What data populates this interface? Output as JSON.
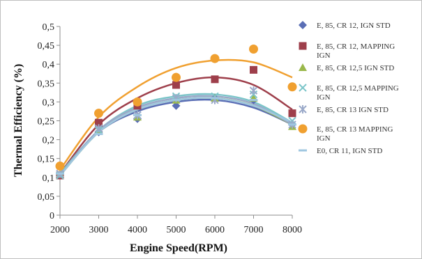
{
  "chart_data": {
    "type": "scatter",
    "xlabel": "Engine Speed(RPM)",
    "ylabel": "Thermal Efficiency (%)",
    "xlim": [
      2000,
      8000
    ],
    "ylim": [
      0,
      0.5
    ],
    "x_ticks": [
      "2000",
      "3000",
      "4000",
      "5000",
      "6000",
      "7000",
      "8000"
    ],
    "y_ticks": [
      "0",
      "0,05",
      "0,1",
      "0,15",
      "0,2",
      "0,25",
      "0,3",
      "0,35",
      "0,4",
      "0,45",
      "0,5"
    ],
    "x": [
      2000,
      3000,
      4000,
      5000,
      6000,
      7000,
      8000
    ],
    "grid": false,
    "legend_position": "right",
    "series": [
      {
        "name": "E, 85,  CR 12, IGN STD",
        "name_lines": [
          "E, 85,  CR 12, IGN STD"
        ],
        "values": [
          0.105,
          0.22,
          0.255,
          0.29,
          0.31,
          0.305,
          0.24
        ],
        "fit": [
          0.105,
          0.22,
          0.275,
          0.3,
          0.305,
          0.285,
          0.24
        ],
        "color": "#5a6eb5",
        "marker": "diamond"
      },
      {
        "name": "E, 85,  CR 12, MAPPING IGN",
        "name_lines": [
          "E, 85,  CR 12, MAPPING",
          "IGN"
        ],
        "values": [
          0.105,
          0.245,
          0.29,
          0.345,
          0.36,
          0.385,
          0.27
        ],
        "fit": [
          0.11,
          0.24,
          0.31,
          0.35,
          0.365,
          0.345,
          0.28
        ],
        "color": "#9e3f4b",
        "marker": "square"
      },
      {
        "name": "E, 85,  CR 12,5 IGN STD",
        "name_lines": [
          "E, 85,  CR 12,5 IGN STD"
        ],
        "values": [
          0.11,
          0.225,
          0.26,
          0.305,
          0.31,
          0.31,
          0.235
        ],
        "fit": [
          0.105,
          0.22,
          0.28,
          0.305,
          0.31,
          0.29,
          0.24
        ],
        "color": "#9ab84b",
        "marker": "triangle"
      },
      {
        "name": "E, 85,  CR 12,5 MAPPING IGN",
        "name_lines": [
          "E, 85,  CR 12,5 MAPPING",
          "IGN"
        ],
        "values": [
          0.105,
          0.225,
          0.265,
          0.315,
          0.315,
          0.32,
          0.25
        ],
        "fit": [
          0.11,
          0.225,
          0.29,
          0.315,
          0.32,
          0.3,
          0.245
        ],
        "color": "#7cc5c9",
        "marker": "cross"
      },
      {
        "name": "E, 85,  CR 13 IGN STD",
        "name_lines": [
          "E, 85,  CR 13 IGN STD"
        ],
        "values": [
          0.11,
          0.23,
          0.265,
          0.31,
          0.305,
          0.33,
          0.24
        ],
        "fit": [
          0.105,
          0.225,
          0.285,
          0.31,
          0.315,
          0.295,
          0.24
        ],
        "color": "#9aa9c9",
        "marker": "x"
      },
      {
        "name": "E, 85,  CR 13 MAPPING IGN",
        "name_lines": [
          "E, 85,  CR 13 MAPPING",
          "IGN"
        ],
        "values": [
          0.13,
          0.27,
          0.3,
          0.365,
          0.415,
          0.44,
          0.34
        ],
        "fit": [
          0.12,
          0.26,
          0.34,
          0.39,
          0.41,
          0.405,
          0.365
        ],
        "color": "#f0a030",
        "marker": "circle"
      },
      {
        "name": "E0, CR 11, IGN STD",
        "name_lines": [
          "E0, CR 11, IGN STD"
        ],
        "values": [
          0.11,
          0.215,
          0.265,
          0.305,
          0.31,
          0.305,
          0.24
        ],
        "fit": [
          0.105,
          0.22,
          0.28,
          0.305,
          0.31,
          0.29,
          0.245
        ],
        "color": "#9fc7e0",
        "marker": "dash"
      }
    ]
  }
}
